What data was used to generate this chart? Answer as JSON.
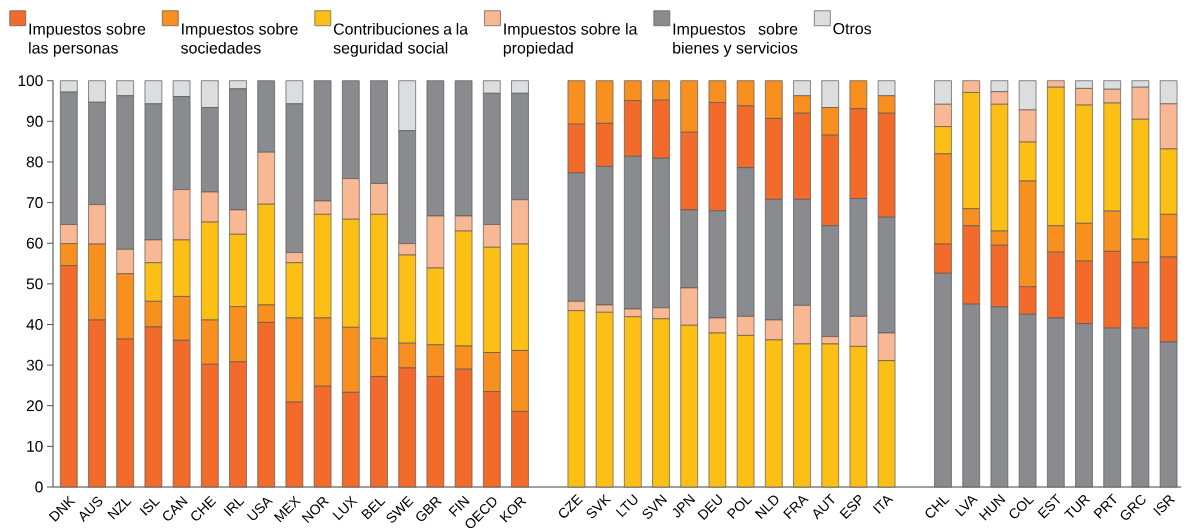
{
  "chart_data": [
    {
      "type": "bar",
      "stacked": true,
      "legend": "top",
      "ylim": [
        0,
        100
      ],
      "yticks": [
        0,
        10,
        20,
        30,
        40,
        50,
        60,
        70,
        80,
        90,
        100
      ],
      "categories": [
        "DNK",
        "AUS",
        "NZL",
        "ISL",
        "CAN",
        "CHE",
        "IRL",
        "USA",
        "MEX",
        "NOR",
        "LUX",
        "BEL",
        "SWE",
        "GBR",
        "FIN",
        "OECD",
        "KOR"
      ],
      "series": [
        {
          "name": "Impuestos sobre las personas",
          "color": "#f26b2a",
          "values": [
            54.5,
            41.1,
            36.4,
            39.4,
            36.1,
            30.2,
            30.8,
            40.5,
            20.9,
            24.8,
            23.3,
            27.2,
            29.3,
            27.2,
            29.0,
            23.5,
            18.6
          ]
        },
        {
          "name": "Impuestos sobre sociedades",
          "color": "#f7901e",
          "values": [
            5.4,
            18.7,
            16.1,
            6.3,
            10.8,
            10.9,
            13.6,
            4.3,
            20.7,
            16.8,
            16.0,
            9.4,
            6.1,
            7.8,
            5.7,
            9.6,
            15.0
          ]
        },
        {
          "name": "Contribuciones a la seguridad social",
          "color": "#fbbf15",
          "values": [
            0,
            0,
            0,
            9.5,
            13.9,
            24.1,
            17.8,
            24.8,
            13.6,
            25.5,
            26.6,
            30.5,
            21.7,
            18.9,
            28.3,
            25.9,
            26.2
          ]
        },
        {
          "name": "Impuestos sobre la propiedad",
          "color": "#f9b894",
          "values": [
            4.7,
            9.7,
            6.0,
            5.6,
            12.4,
            7.4,
            6.0,
            12.8,
            2.5,
            3.3,
            10.0,
            7.6,
            2.8,
            12.8,
            3.7,
            5.6,
            10.9
          ]
        },
        {
          "name": "Impuestos sobre bienes y servicios",
          "color": "#8a8b8f",
          "values": [
            32.6,
            25.2,
            37.8,
            33.5,
            22.9,
            20.8,
            29.8,
            17.6,
            36.6,
            29.6,
            24.1,
            25.3,
            27.8,
            33.3,
            33.3,
            32.3,
            26.2
          ]
        },
        {
          "name": "Otros",
          "color": "#dcdddf",
          "values": [
            2.8,
            5.3,
            3.7,
            5.7,
            3.9,
            6.6,
            2.0,
            0,
            5.7,
            0,
            0,
            0,
            12.3,
            0,
            0,
            3.1,
            3.1
          ]
        }
      ]
    },
    {
      "type": "bar",
      "stacked": true,
      "ylim": [
        0,
        100
      ],
      "tick_labels": "x",
      "categories": [
        "CZE",
        "SVK",
        "LTU",
        "SVN",
        "JPN",
        "DEU",
        "POL",
        "NLD",
        "FRA",
        "AUT",
        "ESP",
        "ITA"
      ],
      "series": [
        {
          "color": "#fbbf15",
          "values": [
            43.4,
            43.0,
            41.9,
            41.4,
            39.8,
            37.9,
            37.3,
            36.2,
            35.2,
            35.2,
            34.6,
            31.1
          ]
        },
        {
          "color": "#f9b894",
          "values": [
            2.3,
            1.8,
            1.9,
            2.7,
            9.2,
            3.7,
            4.7,
            4.9,
            9.5,
            1.8,
            7.4,
            6.8
          ]
        },
        {
          "color": "#8a8b8f",
          "values": [
            31.6,
            34.1,
            37.6,
            36.8,
            19.2,
            26.4,
            36.6,
            29.7,
            26.1,
            27.3,
            29.0,
            28.5
          ]
        },
        {
          "color": "#f26b2a",
          "values": [
            12.0,
            10.6,
            13.7,
            14.3,
            19.1,
            26.6,
            15.2,
            19.9,
            21.2,
            22.3,
            22.1,
            25.6
          ]
        },
        {
          "color": "#f7901e",
          "values": [
            10.7,
            10.5,
            4.9,
            4.8,
            12.7,
            5.4,
            6.2,
            9.3,
            4.3,
            6.8,
            6.9,
            4.3
          ]
        },
        {
          "color": "#dcdddf",
          "values": [
            0,
            0,
            0,
            0,
            0,
            0,
            0,
            0,
            3.7,
            6.6,
            0,
            3.7
          ]
        }
      ]
    },
    {
      "type": "bar",
      "stacked": true,
      "ylim": [
        0,
        100
      ],
      "tick_labels": "x",
      "categories": [
        "CHL",
        "LVA",
        "HUN",
        "COL",
        "EST",
        "TUR",
        "PRT",
        "GRC",
        "ISR"
      ],
      "series": [
        {
          "color": "#8a8b8f",
          "values": [
            52.6,
            45.0,
            44.3,
            42.5,
            41.6,
            40.2,
            39.1,
            39.1,
            35.7
          ]
        },
        {
          "color": "#f26b2a",
          "values": [
            7.2,
            19.3,
            15.2,
            6.8,
            16.2,
            15.4,
            18.9,
            16.2,
            20.9
          ]
        },
        {
          "color": "#f7901e",
          "values": [
            22.2,
            4.2,
            3.5,
            26.0,
            6.5,
            9.3,
            9.9,
            5.7,
            10.5
          ]
        },
        {
          "color": "#fbbf15",
          "values": [
            6.7,
            28.6,
            31.2,
            9.6,
            34.1,
            29.1,
            26.6,
            29.5,
            16.1
          ]
        },
        {
          "color": "#f9b894",
          "values": [
            5.5,
            2.9,
            3.1,
            7.9,
            1.6,
            4.1,
            3.4,
            7.9,
            11.1
          ]
        },
        {
          "color": "#dcdddf",
          "values": [
            5.8,
            0,
            2.7,
            7.2,
            0,
            1.9,
            2.1,
            1.6,
            5.7
          ]
        }
      ]
    }
  ]
}
